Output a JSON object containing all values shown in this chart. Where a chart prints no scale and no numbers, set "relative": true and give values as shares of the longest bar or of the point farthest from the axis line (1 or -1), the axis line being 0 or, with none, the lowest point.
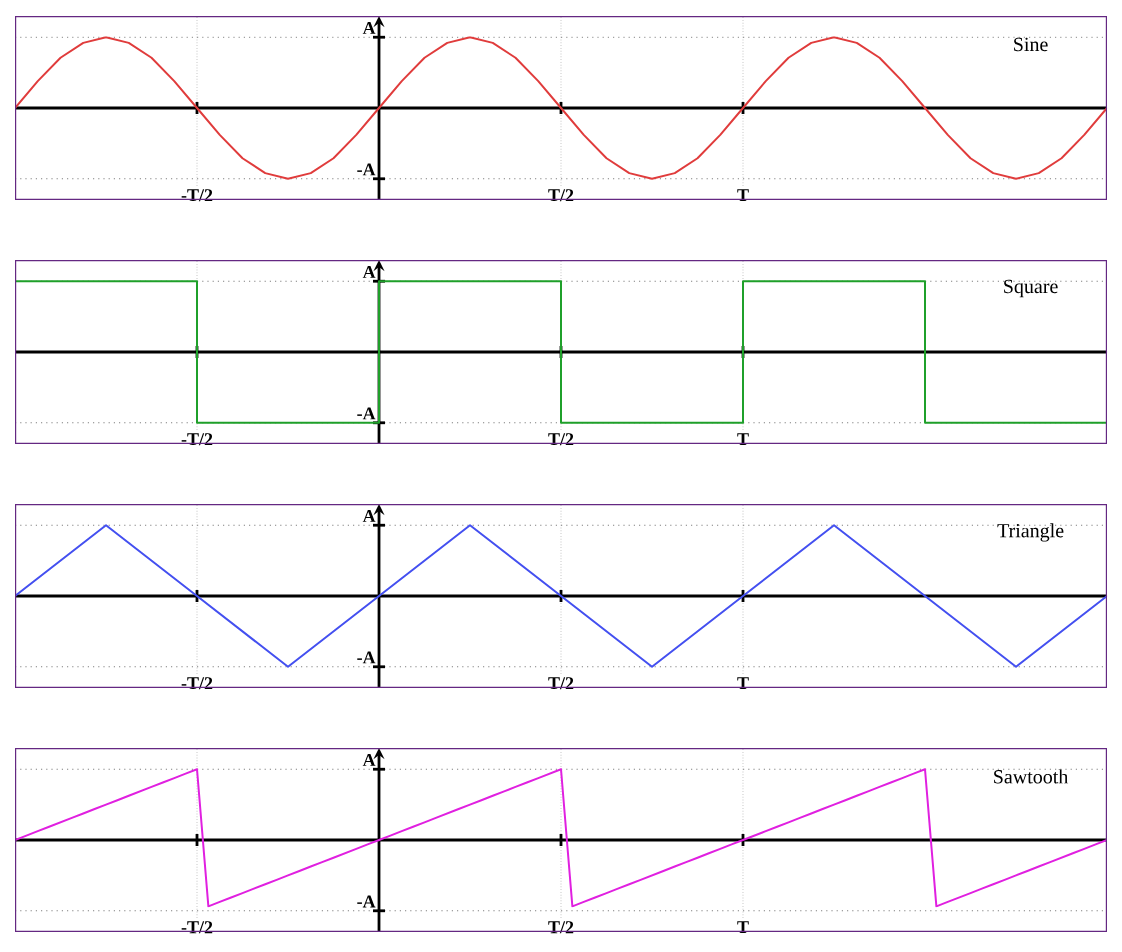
{
  "chart_data": [
    {
      "type": "line",
      "title": "Sine",
      "relative": true,
      "categories": [
        null,
        null,
        null,
        null,
        null,
        null,
        null,
        null,
        "-T/2",
        null,
        null,
        null,
        null,
        null,
        null,
        null,
        null,
        null,
        null,
        null,
        null,
        null,
        null,
        null,
        "T/2",
        null,
        null,
        null,
        null,
        null,
        null,
        null,
        "T",
        null,
        null,
        null,
        null,
        null,
        null,
        null,
        null,
        null,
        null,
        null,
        null,
        null,
        null,
        null,
        null
      ],
      "series": [
        {
          "color": "#e03c3c",
          "values": [
            0,
            0.38,
            0.71,
            0.92,
            1,
            0.92,
            0.71,
            0.38,
            0,
            -0.38,
            -0.71,
            -0.92,
            -1,
            -0.92,
            -0.71,
            -0.38,
            0,
            0.38,
            0.71,
            0.92,
            1,
            0.92,
            0.71,
            0.38,
            0,
            -0.38,
            -0.71,
            -0.92,
            -1,
            -0.92,
            -0.71,
            -0.38,
            0,
            0.38,
            0.71,
            0.92,
            1,
            0.92,
            0.71,
            0.38,
            0,
            -0.38,
            -0.71,
            -0.92,
            -1,
            -0.92,
            -0.71,
            -0.38,
            0
          ]
        }
      ],
      "ref_lines": [
        {
          "axis": "y",
          "value": 1,
          "label": "A",
          "line_style": "dotted"
        },
        {
          "axis": "y",
          "value": -1,
          "label": "-A",
          "line_style": "dotted"
        }
      ],
      "grid": "x"
    },
    {
      "type": "step",
      "title": "Square",
      "relative": true,
      "categories": [
        null,
        null,
        "-T/2",
        null,
        null,
        null,
        "T/2",
        null,
        "T",
        null,
        null,
        null,
        null
      ],
      "series": [
        {
          "color": "#1fa02a",
          "values": [
            1,
            1,
            -1,
            -1,
            1,
            1,
            -1,
            -1,
            1,
            1,
            -1,
            -1,
            -1
          ]
        }
      ],
      "ref_lines": [
        {
          "axis": "y",
          "value": 1,
          "label": "A",
          "line_style": "dotted"
        },
        {
          "axis": "y",
          "value": -1,
          "label": "-A",
          "line_style": "dotted"
        }
      ],
      "grid": "x"
    },
    {
      "type": "line",
      "title": "Triangle",
      "relative": true,
      "categories": [
        null,
        null,
        "-T/2",
        null,
        null,
        null,
        "T/2",
        null,
        "T",
        null,
        null,
        null,
        null
      ],
      "series": [
        {
          "color": "#4450f0",
          "values": [
            0,
            1,
            0,
            -1,
            0,
            1,
            0,
            -1,
            0,
            1,
            0,
            -1,
            0
          ]
        }
      ],
      "ref_lines": [
        {
          "axis": "y",
          "value": 1,
          "label": "A",
          "line_style": "dotted"
        },
        {
          "axis": "y",
          "value": -1,
          "label": "-A",
          "line_style": "dotted"
        }
      ],
      "grid": "x"
    },
    {
      "type": "line",
      "title": "Sawtooth",
      "relative": true,
      "categories": [
        null,
        null,
        null,
        null,
        null,
        null,
        null,
        null,
        null,
        null,
        null,
        null,
        null,
        null,
        null,
        null,
        "-T/2",
        null,
        null,
        null,
        null,
        null,
        null,
        null,
        null,
        null,
        null,
        null,
        null,
        null,
        null,
        null,
        null,
        null,
        null,
        null,
        null,
        null,
        null,
        null,
        null,
        null,
        null,
        null,
        null,
        null,
        null,
        null,
        "T/2",
        null,
        null,
        null,
        null,
        null,
        null,
        null,
        null,
        null,
        null,
        null,
        null,
        null,
        null,
        null,
        "T",
        null,
        null,
        null,
        null,
        null,
        null,
        null,
        null,
        null,
        null,
        null,
        null,
        null,
        null,
        null,
        null,
        null,
        null,
        null,
        null,
        null,
        null,
        null,
        null,
        null,
        null,
        null,
        null,
        null,
        null,
        null,
        null
      ],
      "series": [
        {
          "color": "#e020e0",
          "values": [
            0,
            0.0625,
            0.125,
            0.1875,
            0.25,
            0.3125,
            0.375,
            0.4375,
            0.5,
            0.5625,
            0.625,
            0.6875,
            0.75,
            0.8125,
            0.875,
            0.9375,
            1,
            -0.9375,
            -0.875,
            -0.8125,
            -0.75,
            -0.6875,
            -0.625,
            -0.5625,
            -0.5,
            -0.4375,
            -0.375,
            -0.3125,
            -0.25,
            -0.1875,
            -0.125,
            -0.0625,
            0,
            0.0625,
            0.125,
            0.1875,
            0.25,
            0.3125,
            0.375,
            0.4375,
            0.5,
            0.5625,
            0.625,
            0.6875,
            0.75,
            0.8125,
            0.875,
            0.9375,
            1,
            -0.9375,
            -0.875,
            -0.8125,
            -0.75,
            -0.6875,
            -0.625,
            -0.5625,
            -0.5,
            -0.4375,
            -0.375,
            -0.3125,
            -0.25,
            -0.1875,
            -0.125,
            -0.0625,
            0,
            0.0625,
            0.125,
            0.1875,
            0.25,
            0.3125,
            0.375,
            0.4375,
            0.5,
            0.5625,
            0.625,
            0.6875,
            0.75,
            0.8125,
            0.875,
            0.9375,
            1,
            -0.9375,
            -0.875,
            -0.8125,
            -0.75,
            -0.6875,
            -0.625,
            -0.5625,
            -0.5,
            -0.4375,
            -0.375,
            -0.3125,
            -0.25,
            -0.1875,
            -0.125,
            -0.0625,
            0
          ]
        }
      ],
      "ref_lines": [
        {
          "axis": "y",
          "value": 1,
          "label": "A",
          "line_style": "dotted"
        },
        {
          "axis": "y",
          "value": -1,
          "label": "-A",
          "line_style": "dotted"
        }
      ],
      "grid": "x"
    }
  ]
}
